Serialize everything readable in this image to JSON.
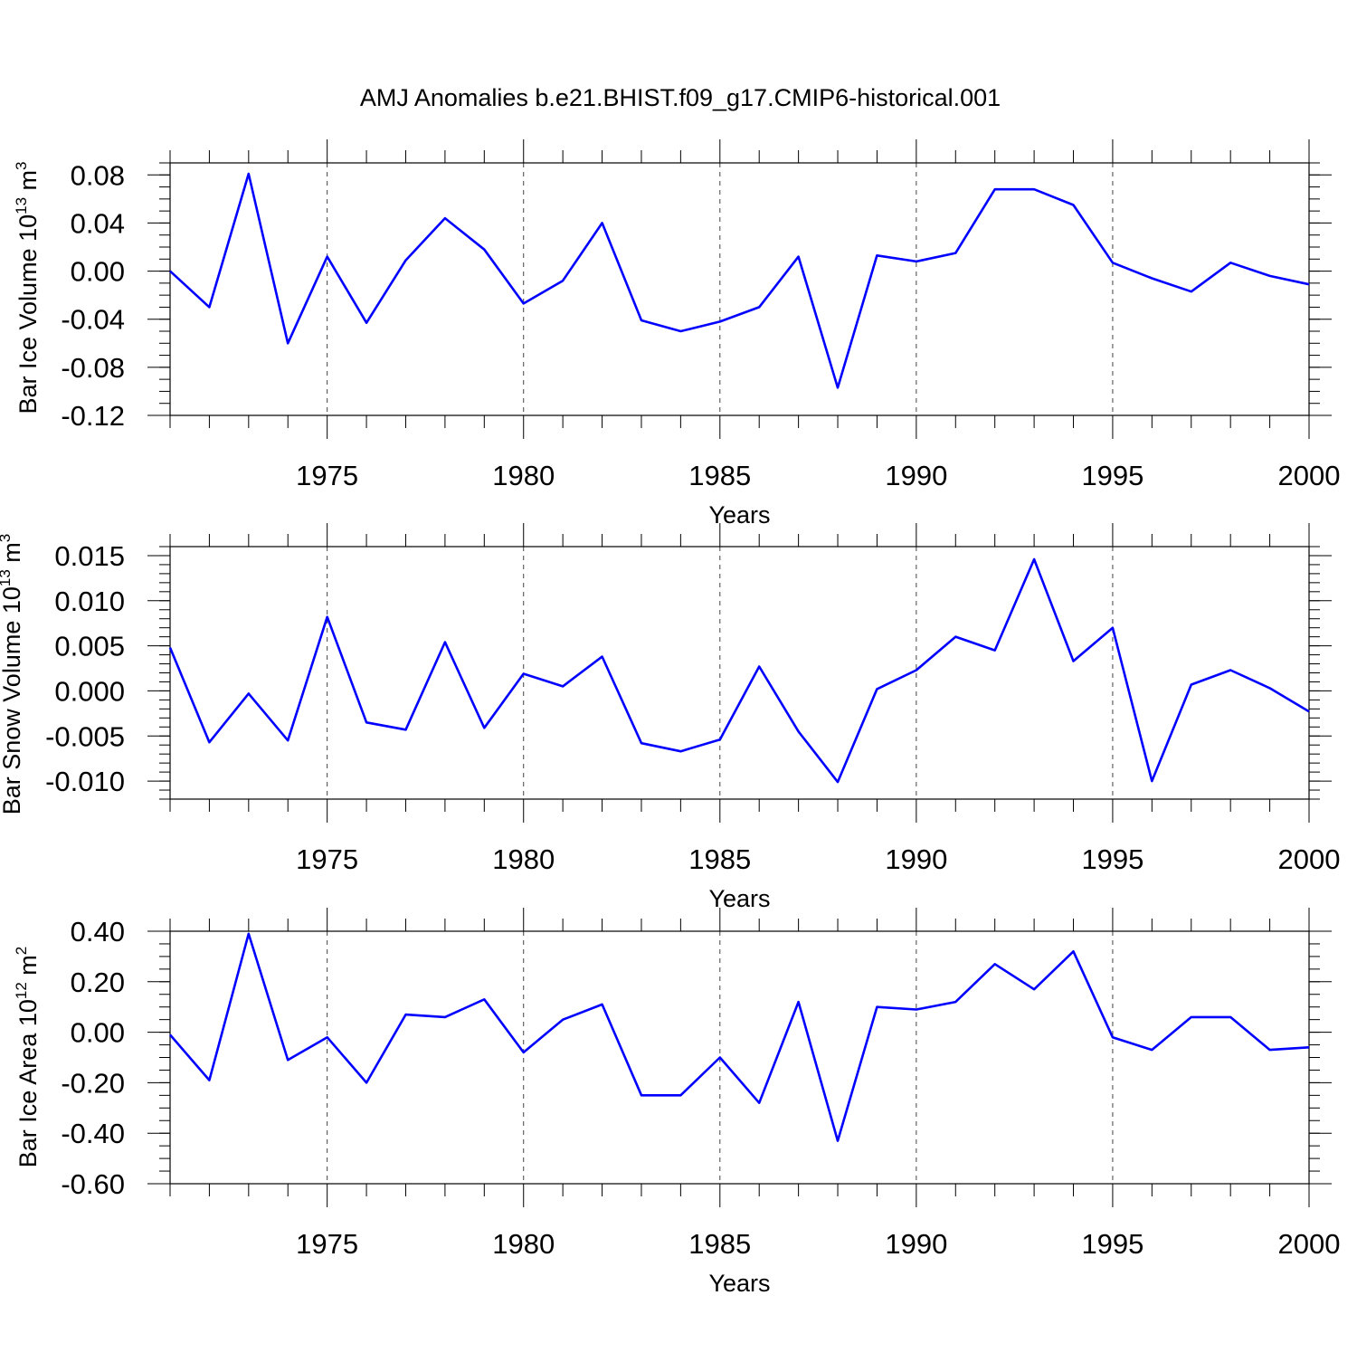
{
  "title": "AMJ Anomalies b.e21.BHIST.f09_g17.CMIP6-historical.001",
  "colors": {
    "line": "#0000ff",
    "frame": "#000000",
    "grid": "#444444"
  },
  "chart_data": [
    {
      "type": "line",
      "title": "",
      "xlabel": "Years",
      "ylabel": "Bar Ice Volume 10",
      "ylabel_exp": "13",
      "ylabel_unit": " m",
      "ylabel_unit_exp": "3",
      "xlim": [
        1971,
        2000
      ],
      "ylim": [
        -0.12,
        0.09
      ],
      "x_ticks": [
        "1975",
        "1980",
        "1985",
        "1990",
        "1995",
        "2000"
      ],
      "y_ticks": [
        "0.08",
        "0.04",
        "0.00",
        "-0.04",
        "-0.08",
        "-0.12"
      ],
      "grid": "vertical dashed at major years",
      "series": [
        {
          "x": [
            1971,
            1972,
            1973,
            1974,
            1975,
            1976,
            1977,
            1978,
            1979,
            1980,
            1981,
            1982,
            1983,
            1984,
            1985,
            1986,
            1987,
            1988,
            1989,
            1990,
            1991,
            1992,
            1993,
            1994,
            1995,
            1996,
            1997,
            1998,
            1999,
            2000
          ],
          "values": [
            0.0,
            -0.03,
            0.081,
            -0.06,
            0.012,
            -0.043,
            0.009,
            0.044,
            0.018,
            -0.027,
            -0.008,
            0.04,
            -0.041,
            -0.05,
            -0.042,
            -0.03,
            0.012,
            -0.097,
            0.013,
            0.008,
            0.015,
            0.068,
            0.068,
            0.055,
            0.007,
            -0.006,
            -0.017,
            0.007,
            -0.004,
            -0.011
          ]
        }
      ]
    },
    {
      "type": "line",
      "title": "",
      "xlabel": "Years",
      "ylabel": "Bar Snow Volume 10",
      "ylabel_exp": "13",
      "ylabel_unit": " m",
      "ylabel_unit_exp": "3",
      "xlim": [
        1971,
        2000
      ],
      "ylim": [
        -0.012,
        0.016
      ],
      "x_ticks": [
        "1975",
        "1980",
        "1985",
        "1990",
        "1995",
        "2000"
      ],
      "y_ticks": [
        "0.015",
        "0.010",
        "0.005",
        "0.000",
        "-0.005",
        "-0.010"
      ],
      "grid": "vertical dashed at major years",
      "series": [
        {
          "x": [
            1971,
            1972,
            1973,
            1974,
            1975,
            1976,
            1977,
            1978,
            1979,
            1980,
            1981,
            1982,
            1983,
            1984,
            1985,
            1986,
            1987,
            1988,
            1989,
            1990,
            1991,
            1992,
            1993,
            1994,
            1995,
            1996,
            1997,
            1998,
            1999,
            2000
          ],
          "values": [
            0.0048,
            -0.0057,
            -0.0003,
            -0.0055,
            0.0082,
            -0.0035,
            -0.0043,
            0.0054,
            -0.0041,
            0.0019,
            0.0005,
            0.0038,
            -0.0058,
            -0.0067,
            -0.0054,
            0.0027,
            -0.0045,
            -0.0101,
            0.0002,
            0.0023,
            0.006,
            0.0045,
            0.0146,
            0.0033,
            0.007,
            -0.01,
            0.0007,
            0.0023,
            0.0003,
            -0.0023
          ]
        }
      ]
    },
    {
      "type": "line",
      "title": "",
      "xlabel": "Years",
      "ylabel": "Bar Ice Area 10",
      "ylabel_exp": "12",
      "ylabel_unit": " m",
      "ylabel_unit_exp": "2",
      "xlim": [
        1971,
        2000
      ],
      "ylim": [
        -0.6,
        0.4
      ],
      "x_ticks": [
        "1975",
        "1980",
        "1985",
        "1990",
        "1995",
        "2000"
      ],
      "y_ticks": [
        "0.40",
        "0.20",
        "0.00",
        "-0.20",
        "-0.40",
        "-0.60"
      ],
      "grid": "vertical dashed at major years",
      "series": [
        {
          "x": [
            1971,
            1972,
            1973,
            1974,
            1975,
            1976,
            1977,
            1978,
            1979,
            1980,
            1981,
            1982,
            1983,
            1984,
            1985,
            1986,
            1987,
            1988,
            1989,
            1990,
            1991,
            1992,
            1993,
            1994,
            1995,
            1996,
            1997,
            1998,
            1999,
            2000
          ],
          "values": [
            -0.01,
            -0.19,
            0.39,
            -0.11,
            -0.02,
            -0.2,
            0.07,
            0.06,
            0.13,
            -0.08,
            0.05,
            0.11,
            -0.25,
            -0.25,
            -0.1,
            -0.28,
            0.12,
            -0.43,
            0.1,
            0.09,
            0.12,
            0.27,
            0.17,
            0.32,
            -0.02,
            -0.07,
            0.06,
            0.06,
            -0.07,
            -0.06
          ]
        }
      ]
    }
  ]
}
